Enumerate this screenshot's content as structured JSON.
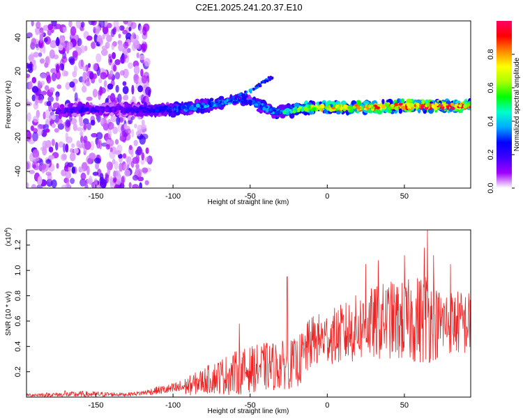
{
  "title": "C2E1.2025.241.20.37.E10",
  "chart_data": [
    {
      "type": "heatmap",
      "title": "C2E1.2025.241.20.37.E10",
      "xlabel": "Height of straight line (km)",
      "ylabel": "Frequency (Hz)",
      "xlim": [
        -195,
        93
      ],
      "ylim": [
        -50,
        50
      ],
      "xticks": [
        -150,
        -100,
        -50,
        0,
        50
      ],
      "yticks": [
        -40,
        -20,
        0,
        20,
        40
      ],
      "colorbar": {
        "label": "Normalized spectral amplitude",
        "range": [
          0.0,
          1.0
        ],
        "ticks": [
          0.0,
          0.2,
          0.4,
          0.6,
          0.8
        ],
        "colors": [
          "#ffffff",
          "#a000ff",
          "#4000ff",
          "#0000ff",
          "#00aaff",
          "#00ffcc",
          "#00ff00",
          "#aaff00",
          "#ffff00",
          "#ff8800",
          "#ff0000",
          "#ff0066"
        ]
      },
      "ridge": {
        "x": [
          -175,
          -160,
          -150,
          -140,
          -120,
          -100,
          -80,
          -65,
          -55,
          -45,
          -35,
          -25,
          -15,
          0,
          20,
          40,
          60,
          80,
          93
        ],
        "freq": [
          -4,
          -3,
          -3,
          -3,
          -3,
          -3,
          -1,
          2,
          3,
          0,
          -4,
          -4,
          -2,
          -2,
          -2,
          -1,
          -1,
          -1,
          -1
        ],
        "amp": [
          0.15,
          0.2,
          0.18,
          0.15,
          0.2,
          0.3,
          0.35,
          0.35,
          0.3,
          0.3,
          0.35,
          0.45,
          0.6,
          0.7,
          0.75,
          0.8,
          0.85,
          0.85,
          0.8
        ]
      },
      "secondary_branch": {
        "x": [
          -70,
          -50,
          -35
        ],
        "freq": [
          0,
          8,
          17
        ]
      },
      "noise_region_x": [
        -195,
        -115
      ]
    },
    {
      "type": "line",
      "xlabel": "Height of straight line (km)",
      "ylabel": "SNR (10 * v/v)",
      "scale_label": "(x10",
      "scale_exponent": "4",
      "scale_close": ")",
      "xlim": [
        -195,
        93
      ],
      "ylim": [
        0,
        1.32
      ],
      "xticks": [
        -150,
        -100,
        -50,
        0,
        50
      ],
      "yticks": [
        0.2,
        0.4,
        0.6,
        0.8,
        1.0,
        1.2
      ],
      "color": "#ee2222",
      "envelope": {
        "x": [
          -195,
          -170,
          -160,
          -130,
          -120,
          -110,
          -100,
          -90,
          -80,
          -70,
          -60,
          -50,
          -40,
          -30,
          -20,
          -15,
          -10,
          0,
          10,
          20,
          30,
          40,
          50,
          60,
          65,
          70,
          80,
          93
        ],
        "base": [
          0.015,
          0.018,
          0.02,
          0.02,
          0.03,
          0.05,
          0.06,
          0.08,
          0.12,
          0.15,
          0.17,
          0.2,
          0.22,
          0.23,
          0.25,
          0.3,
          0.42,
          0.45,
          0.47,
          0.52,
          0.55,
          0.58,
          0.56,
          0.58,
          0.6,
          0.55,
          0.57,
          0.55
        ],
        "amp": [
          0.02,
          0.03,
          0.04,
          0.02,
          0.03,
          0.05,
          0.07,
          0.12,
          0.16,
          0.22,
          0.27,
          0.28,
          0.3,
          0.3,
          0.3,
          0.35,
          0.32,
          0.32,
          0.38,
          0.42,
          0.45,
          0.48,
          0.5,
          0.55,
          0.6,
          0.45,
          0.4,
          0.4
        ]
      },
      "peaks": {
        "x": [
          -170,
          -57,
          -26,
          -13,
          25,
          33,
          50,
          63,
          65,
          69,
          80
        ],
        "y": [
          0.05,
          0.58,
          0.95,
          0.58,
          1.05,
          1.08,
          1.12,
          1.18,
          1.32,
          1.12,
          1.05
        ]
      }
    }
  ]
}
